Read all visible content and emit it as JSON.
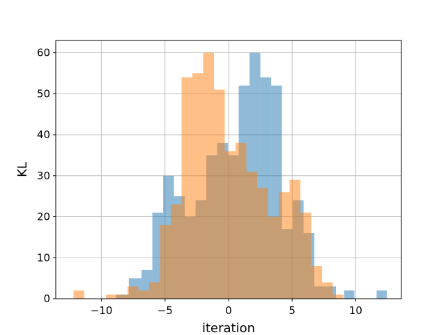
{
  "chart_data": {
    "type": "bar",
    "title": "",
    "xlabel": "iteration",
    "ylabel": "KL",
    "xlim": [
      -13.6,
      13.6
    ],
    "ylim": [
      0,
      63
    ],
    "xticks": [
      -10,
      -5,
      0,
      5,
      10
    ],
    "xtick_labels": [
      "−10",
      "−5",
      "0",
      "5",
      "10"
    ],
    "yticks": [
      0,
      10,
      20,
      30,
      40,
      50,
      60
    ],
    "ytick_labels": [
      "0",
      "10",
      "20",
      "30",
      "40",
      "50",
      "60"
    ],
    "grid": true,
    "legend": "none",
    "overlap_color": "#c49a77",
    "series": [
      {
        "color": "#1f77b4",
        "alpha": 0.5,
        "bins": [
          {
            "x0": -8.85,
            "x1": -7.85,
            "count": 1
          },
          {
            "x0": -7.85,
            "x1": -6.85,
            "count": 5
          },
          {
            "x0": -6.85,
            "x1": -6.0,
            "count": 7
          },
          {
            "x0": -6.0,
            "x1": -5.15,
            "count": 21
          },
          {
            "x0": -5.15,
            "x1": -4.3,
            "count": 30
          },
          {
            "x0": -4.3,
            "x1": -3.45,
            "count": 25
          },
          {
            "x0": -3.45,
            "x1": -2.6,
            "count": 20
          },
          {
            "x0": -2.6,
            "x1": -1.75,
            "count": 24
          },
          {
            "x0": -1.75,
            "x1": -0.9,
            "count": 35
          },
          {
            "x0": -0.9,
            "x1": -0.05,
            "count": 38
          },
          {
            "x0": -0.05,
            "x1": 0.8,
            "count": 35
          },
          {
            "x0": 0.8,
            "x1": 1.65,
            "count": 52
          },
          {
            "x0": 1.65,
            "x1": 2.5,
            "count": 60
          },
          {
            "x0": 2.5,
            "x1": 3.35,
            "count": 54
          },
          {
            "x0": 3.35,
            "x1": 4.2,
            "count": 52
          },
          {
            "x0": 4.2,
            "x1": 5.05,
            "count": 17
          },
          {
            "x0": 5.05,
            "x1": 5.9,
            "count": 24
          },
          {
            "x0": 5.9,
            "x1": 6.75,
            "count": 16
          },
          {
            "x0": 6.75,
            "x1": 7.6,
            "count": 3
          },
          {
            "x0": 7.6,
            "x1": 8.45,
            "count": 3
          },
          {
            "x0": 9.1,
            "x1": 9.9,
            "count": 2
          },
          {
            "x0": 11.65,
            "x1": 12.45,
            "count": 2
          }
        ]
      },
      {
        "color": "#ff7f0e",
        "alpha": 0.5,
        "bins": [
          {
            "x0": -12.2,
            "x1": -11.35,
            "count": 2
          },
          {
            "x0": -9.65,
            "x1": -8.8,
            "count": 1
          },
          {
            "x0": -8.8,
            "x1": -7.95,
            "count": 1
          },
          {
            "x0": -7.95,
            "x1": -7.1,
            "count": 3
          },
          {
            "x0": -7.1,
            "x1": -6.25,
            "count": 2
          },
          {
            "x0": -6.25,
            "x1": -5.4,
            "count": 4
          },
          {
            "x0": -5.4,
            "x1": -4.55,
            "count": 18
          },
          {
            "x0": -4.55,
            "x1": -3.7,
            "count": 23
          },
          {
            "x0": -3.7,
            "x1": -2.85,
            "count": 54
          },
          {
            "x0": -2.85,
            "x1": -2.0,
            "count": 55
          },
          {
            "x0": -2.0,
            "x1": -1.15,
            "count": 60
          },
          {
            "x0": -1.15,
            "x1": -0.3,
            "count": 51
          },
          {
            "x0": -0.3,
            "x1": 0.55,
            "count": 36
          },
          {
            "x0": 0.55,
            "x1": 1.4,
            "count": 38
          },
          {
            "x0": 1.4,
            "x1": 2.25,
            "count": 31
          },
          {
            "x0": 2.25,
            "x1": 3.1,
            "count": 27
          },
          {
            "x0": 3.1,
            "x1": 3.95,
            "count": 20
          },
          {
            "x0": 3.95,
            "x1": 4.8,
            "count": 26
          },
          {
            "x0": 4.8,
            "x1": 5.65,
            "count": 29
          },
          {
            "x0": 5.65,
            "x1": 6.5,
            "count": 21
          },
          {
            "x0": 6.5,
            "x1": 7.35,
            "count": 8
          },
          {
            "x0": 7.35,
            "x1": 8.2,
            "count": 4
          },
          {
            "x0": 8.2,
            "x1": 9.05,
            "count": 1
          }
        ]
      }
    ]
  }
}
